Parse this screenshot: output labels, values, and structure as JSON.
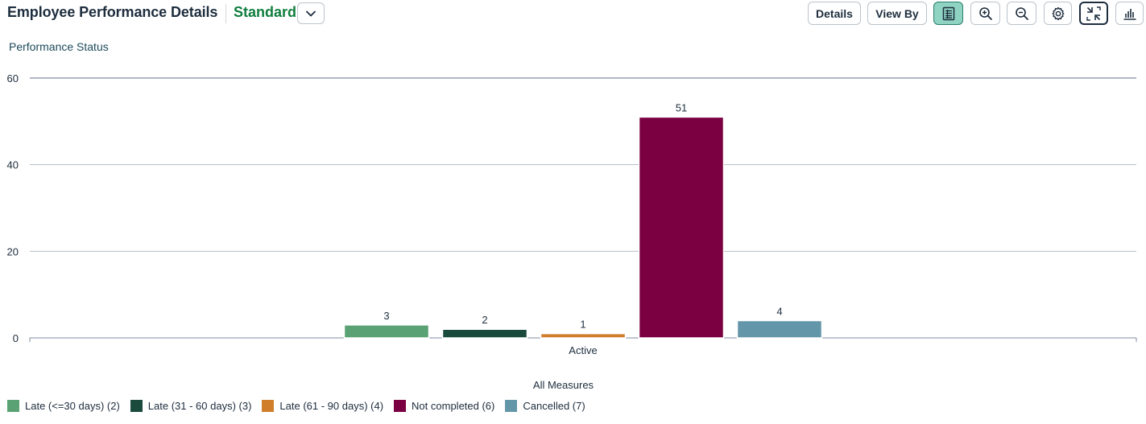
{
  "header": {
    "title": "Employee Performance Details",
    "variant": "Standard"
  },
  "toolbar": {
    "details_label": "Details",
    "view_by_label": "View By",
    "icons": {
      "table": "table-view-icon",
      "zoom_in": "zoom-in-icon",
      "zoom_out": "zoom-out-icon",
      "settings": "settings-icon",
      "fullscreen": "exit-fullscreen-icon",
      "chart_type": "bar-chart-icon"
    },
    "active_toggle_color": "#8fd3c2"
  },
  "chart": {
    "subtitle": "Performance Status",
    "x_axis_title": "All Measures"
  },
  "chart_data": {
    "type": "bar",
    "categories": [
      "Active"
    ],
    "series": [
      {
        "name": "Late (<=30 days) (2)",
        "values": [
          3
        ],
        "color": "#5aa274"
      },
      {
        "name": "Late (31 - 60 days) (3)",
        "values": [
          2
        ],
        "color": "#1a4a3c"
      },
      {
        "name": "Late (61 - 90 days) (4)",
        "values": [
          1
        ],
        "color": "#d07e2a"
      },
      {
        "name": "Not completed (6)",
        "values": [
          51
        ],
        "color": "#7b0041"
      },
      {
        "name": "Cancelled (7)",
        "values": [
          4
        ],
        "color": "#6496a9"
      }
    ],
    "y_ticks": [
      0,
      20,
      40,
      60
    ],
    "ylim": [
      0,
      60
    ],
    "xlabel": "All Measures",
    "ylabel": "",
    "grid": true,
    "legend_position": "bottom-left"
  }
}
